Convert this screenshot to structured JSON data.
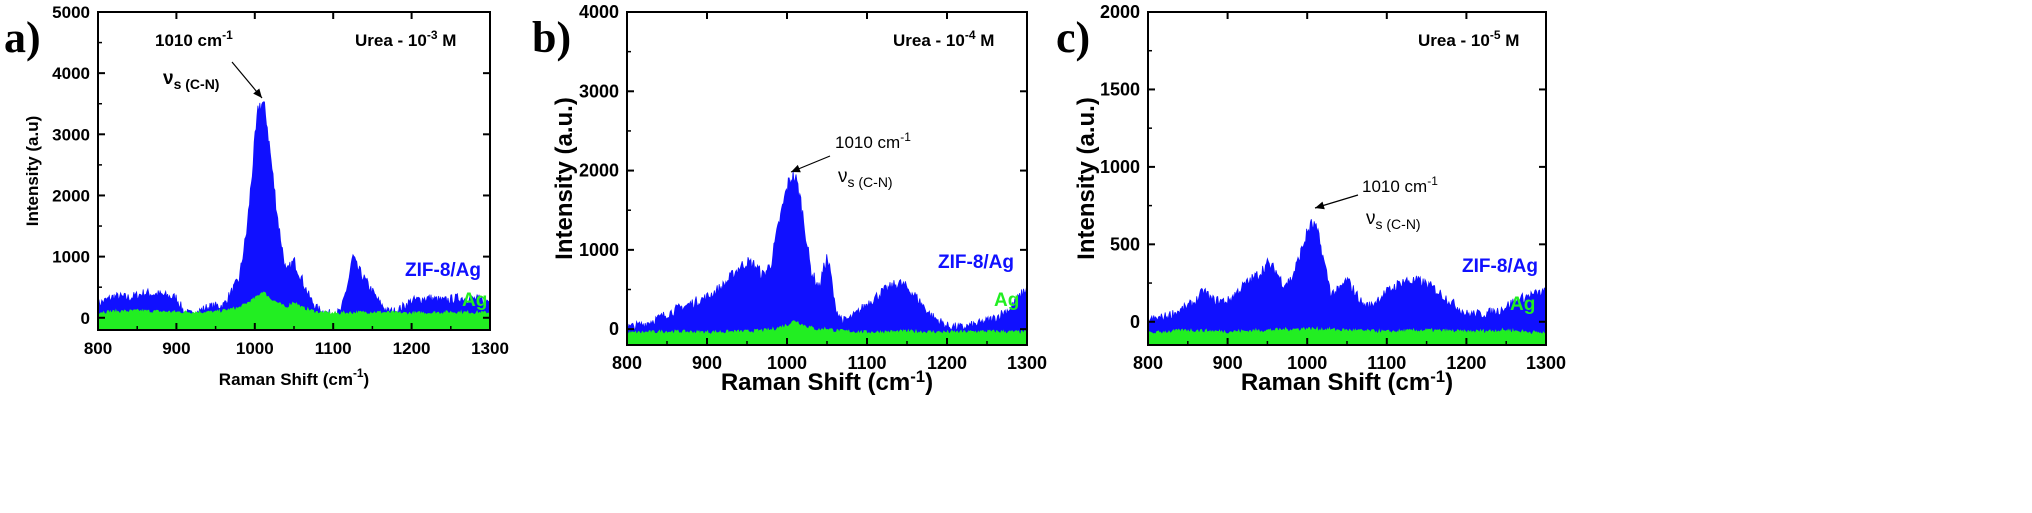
{
  "colors": {
    "zif": "#1010ff",
    "ag": "#22ee22",
    "axis": "#000000",
    "label_blue": "#1010ff",
    "label_green": "#22ee22"
  },
  "chart_data": [
    {
      "type": "area",
      "panel_label": "a)",
      "xlabel": "Raman Shift (cm",
      "xlabel_sup": "-1",
      "xlabel_tail": ")",
      "ylabel": "Intensity (a.u)",
      "xlim": [
        800,
        1300
      ],
      "ylim": [
        -200,
        5000
      ],
      "xticks": [
        "800",
        "900",
        "1000",
        "1100",
        "1200",
        "1300"
      ],
      "yticks": [
        "0",
        "1000",
        "2000",
        "3000",
        "4000",
        "5000"
      ],
      "condition": {
        "text": "Urea - 10",
        "sup": "-3",
        "tail": " M"
      },
      "peak_label": {
        "line1": "1010 cm",
        "line1_sup": "-1",
        "line2": "ν",
        "line2_sub": "s (C-N)"
      },
      "series": [
        {
          "name": "ZIF-8/Ag",
          "x": [
            800,
            820,
            840,
            860,
            880,
            900,
            910,
            920,
            940,
            960,
            980,
            990,
            1000,
            1005,
            1010,
            1015,
            1020,
            1030,
            1040,
            1050,
            1060,
            1070,
            1080,
            1090,
            1100,
            1110,
            1120,
            1125,
            1130,
            1140,
            1150,
            1160,
            1170,
            1180,
            1200,
            1220,
            1240,
            1260,
            1280,
            1300
          ],
          "y": [
            200,
            320,
            300,
            380,
            350,
            300,
            60,
            30,
            150,
            180,
            600,
            1400,
            2800,
            3400,
            3450,
            3200,
            2600,
            1500,
            700,
            900,
            600,
            300,
            120,
            60,
            30,
            80,
            600,
            980,
            800,
            600,
            400,
            200,
            80,
            80,
            250,
            300,
            250,
            300,
            280,
            250
          ]
        },
        {
          "name": "Ag",
          "x": [
            800,
            850,
            900,
            950,
            980,
            1000,
            1010,
            1020,
            1040,
            1050,
            1060,
            1080,
            1100,
            1150,
            1200,
            1250,
            1300
          ],
          "y": [
            80,
            100,
            80,
            80,
            150,
            300,
            420,
            300,
            150,
            250,
            150,
            80,
            60,
            80,
            60,
            80,
            70
          ]
        }
      ]
    },
    {
      "type": "area",
      "panel_label": "b)",
      "xlabel": "Raman Shift (cm",
      "xlabel_sup": "-1",
      "xlabel_tail": ")",
      "ylabel": "Intensity (a.u.)",
      "xlim": [
        800,
        1300
      ],
      "ylim": [
        -200,
        4000
      ],
      "xticks": [
        "800",
        "900",
        "1000",
        "1100",
        "1200",
        "1300"
      ],
      "yticks": [
        "0",
        "1000",
        "2000",
        "3000",
        "4000"
      ],
      "condition": {
        "text": "Urea - 10",
        "sup": "-4",
        "tail": " M"
      },
      "peak_label": {
        "line1": "1010 cm",
        "line1_sup": "-1",
        "line2": "ν",
        "line2_sub": "s (C-N)"
      },
      "series": [
        {
          "name": "ZIF-8/Ag",
          "x": [
            800,
            820,
            840,
            860,
            880,
            900,
            920,
            940,
            950,
            960,
            970,
            980,
            990,
            1000,
            1005,
            1010,
            1015,
            1020,
            1030,
            1040,
            1045,
            1050,
            1055,
            1060,
            1070,
            1080,
            1090,
            1100,
            1120,
            1140,
            1150,
            1160,
            1180,
            1200,
            1220,
            1240,
            1260,
            1280,
            1300
          ],
          "y": [
            0,
            40,
            120,
            220,
            300,
            380,
            520,
            750,
            820,
            780,
            650,
            800,
            1300,
            1750,
            1880,
            1880,
            1700,
            1400,
            700,
            500,
            700,
            880,
            650,
            250,
            80,
            120,
            200,
            300,
            450,
            560,
            500,
            400,
            150,
            20,
            0,
            50,
            120,
            250,
            500
          ]
        },
        {
          "name": "Ag",
          "x": [
            800,
            850,
            900,
            950,
            980,
            1000,
            1010,
            1020,
            1040,
            1050,
            1060,
            1100,
            1150,
            1200,
            1250,
            1300
          ],
          "y": [
            -60,
            -40,
            -50,
            -40,
            -20,
            40,
            100,
            40,
            -20,
            0,
            -30,
            -50,
            -40,
            -50,
            -40,
            -50
          ]
        }
      ]
    },
    {
      "type": "area",
      "panel_label": "c)",
      "xlabel": "Raman Shift (cm",
      "xlabel_sup": "-1",
      "xlabel_tail": ")",
      "ylabel": "Intensity (a.u.)",
      "xlim": [
        800,
        1300
      ],
      "ylim": [
        -150,
        2000
      ],
      "xticks": [
        "800",
        "900",
        "1000",
        "1100",
        "1200",
        "1300"
      ],
      "yticks": [
        "0",
        "500",
        "1000",
        "1500",
        "2000"
      ],
      "condition": {
        "text": "Urea - 10",
        "sup": "-5",
        "tail": " M"
      },
      "peak_label": {
        "line1": "1010 cm",
        "line1_sup": "-1",
        "line2": "ν",
        "line2_sub": "s (C-N)"
      },
      "series": [
        {
          "name": "ZIF-8/Ag",
          "x": [
            800,
            820,
            840,
            860,
            870,
            880,
            900,
            920,
            940,
            950,
            960,
            970,
            980,
            990,
            1000,
            1005,
            1010,
            1015,
            1020,
            1030,
            1040,
            1050,
            1060,
            1070,
            1080,
            1090,
            1100,
            1120,
            1140,
            1150,
            1160,
            1180,
            1200,
            1220,
            1240,
            1260,
            1280,
            1300
          ],
          "y": [
            0,
            20,
            60,
            120,
            190,
            130,
            120,
            220,
            300,
            360,
            320,
            230,
            260,
            400,
            560,
            610,
            600,
            520,
            400,
            170,
            190,
            260,
            180,
            100,
            90,
            140,
            180,
            250,
            250,
            230,
            200,
            120,
            40,
            40,
            60,
            120,
            160,
            180
          ]
        },
        {
          "name": "Ag",
          "x": [
            800,
            850,
            900,
            950,
            1000,
            1050,
            1100,
            1150,
            1200,
            1250,
            1300
          ],
          "y": [
            -80,
            -60,
            -70,
            -60,
            -50,
            -60,
            -70,
            -60,
            -70,
            -60,
            -80
          ]
        }
      ]
    }
  ]
}
